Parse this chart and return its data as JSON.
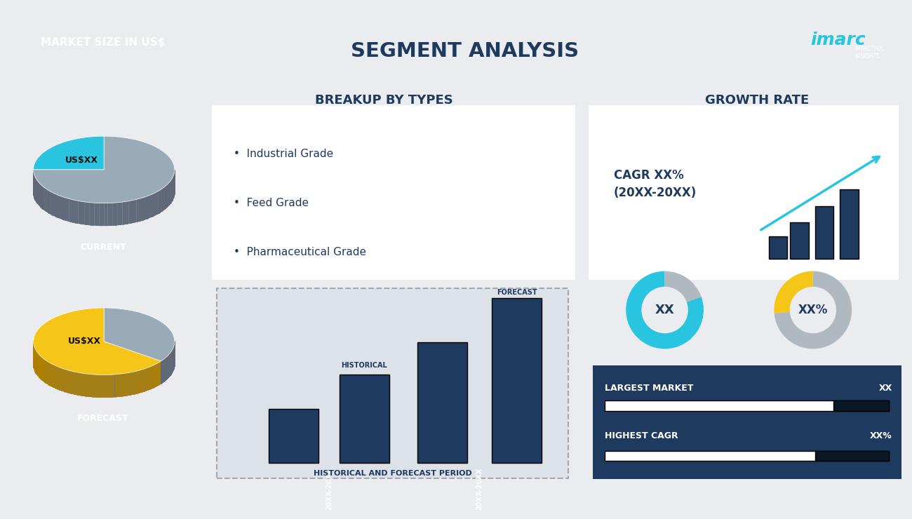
{
  "bg_dark": "#1e3a5f",
  "bg_light": "#eaecef",
  "bar_color": "#1e3a5f",
  "cyan_color": "#29c4e0",
  "gold_color": "#f5c518",
  "gray_pie": "#9aabb8",
  "gray_donut": "#b0b8c0",
  "white": "#ffffff",
  "dark_navy2": "#0d1e30",
  "title": "SEGMENT ANALYSIS",
  "left_panel_title": "MARKET SIZE IN US$",
  "current_label": "CURRENT",
  "forecast_label": "FORECAST",
  "pie_label": "US$XX",
  "breakup_title": "BREAKUP BY TYPES",
  "breakup_items": [
    "Industrial Grade",
    "Feed Grade",
    "Pharmaceutical Grade"
  ],
  "growth_title": "GROWTH RATE",
  "growth_text1": "CAGR XX%",
  "growth_text2": "(20XX-20XX)",
  "bar_title": "HISTORICAL AND FORECAST PERIOD",
  "bar_annot_hist": "HISTORICAL",
  "bar_annot_fore": "FORECAST",
  "bar_label1": "20XX-20XX",
  "bar_label2": "20XX-20XX",
  "donut1_label": "XX",
  "donut2_label": "XX%",
  "largest_market": "LARGEST MARKET",
  "largest_value": "XX",
  "highest_cagr": "HIGHEST CAGR",
  "highest_value": "XX%",
  "imarc_text": "imarc",
  "imarc_sub": "IMPACTFUL\nINSIGHTS"
}
